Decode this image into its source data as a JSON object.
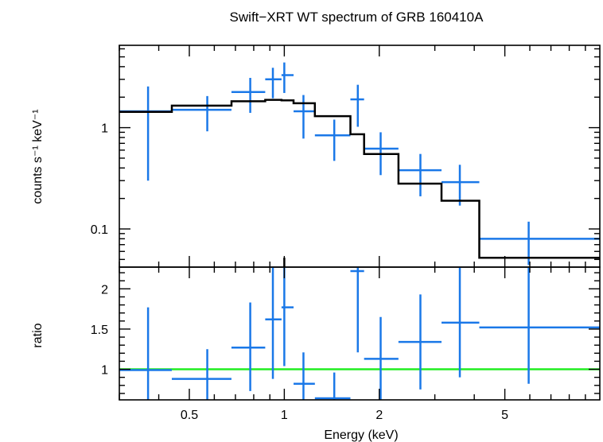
{
  "chart_data": {
    "title": "Swift−XRT WT spectrum of GRB 160410A",
    "xlabel": "Energy (keV)",
    "x_scale": "log",
    "xlim": [
      0.3,
      10
    ],
    "x_ticks": [
      0.5,
      1,
      2,
      5
    ],
    "x_tick_labels": [
      "0.5",
      "1",
      "2",
      "5"
    ],
    "colors": {
      "data": "#1a78e8",
      "model": "#000000",
      "unity": "#22ee22",
      "frame": "#000000"
    },
    "panels": [
      {
        "id": "spectrum",
        "type": "scatter",
        "ylabel": "counts s⁻¹ keV⁻¹",
        "y_scale": "log",
        "ylim": [
          0.042,
          6.5
        ],
        "y_ticks": [
          0.1,
          1
        ],
        "y_tick_labels": [
          "0.1",
          "1"
        ],
        "series": [
          {
            "kind": "errorbars",
            "points": [
              {
                "x": 0.37,
                "xlo": 0.3,
                "xhi": 0.44,
                "y": 1.45,
                "ylo": 0.3,
                "yhi": 2.55
              },
              {
                "x": 0.57,
                "xlo": 0.44,
                "xhi": 0.68,
                "y": 1.5,
                "ylo": 0.92,
                "yhi": 2.05
              },
              {
                "x": 0.78,
                "xlo": 0.68,
                "xhi": 0.87,
                "y": 2.25,
                "ylo": 1.4,
                "yhi": 3.1
              },
              {
                "x": 0.92,
                "xlo": 0.87,
                "xhi": 0.98,
                "y": 3.0,
                "ylo": 1.95,
                "yhi": 3.9
              },
              {
                "x": 1.0,
                "xlo": 0.98,
                "xhi": 1.07,
                "y": 3.3,
                "ylo": 2.2,
                "yhi": 4.4
              },
              {
                "x": 1.15,
                "xlo": 1.07,
                "xhi": 1.25,
                "y": 1.45,
                "ylo": 0.78,
                "yhi": 2.1
              },
              {
                "x": 1.44,
                "xlo": 1.25,
                "xhi": 1.62,
                "y": 0.84,
                "ylo": 0.47,
                "yhi": 1.2
              },
              {
                "x": 1.71,
                "xlo": 1.62,
                "xhi": 1.79,
                "y": 1.9,
                "ylo": 1.02,
                "yhi": 2.65
              },
              {
                "x": 2.02,
                "xlo": 1.79,
                "xhi": 2.3,
                "y": 0.62,
                "ylo": 0.34,
                "yhi": 0.9
              },
              {
                "x": 2.7,
                "xlo": 2.3,
                "xhi": 3.15,
                "y": 0.38,
                "ylo": 0.21,
                "yhi": 0.55
              },
              {
                "x": 3.6,
                "xlo": 3.15,
                "xhi": 4.15,
                "y": 0.29,
                "ylo": 0.17,
                "yhi": 0.43
              },
              {
                "x": 5.95,
                "xlo": 4.15,
                "xhi": 10.0,
                "y": 0.08,
                "ylo": 0.044,
                "yhi": 0.118
              }
            ]
          },
          {
            "kind": "step-model",
            "edges": [
              0.3,
              0.44,
              0.68,
              0.87,
              0.98,
              1.07,
              1.25,
              1.62,
              1.79,
              2.3,
              3.15,
              4.15,
              10.0
            ],
            "values": [
              1.43,
              1.65,
              1.82,
              1.88,
              1.86,
              1.74,
              1.3,
              0.86,
              0.55,
              0.28,
              0.19,
              0.052
            ]
          }
        ],
        "extra_marks": [
          {
            "x": 1.0,
            "ylo": 0.042,
            "yhi": 0.052
          }
        ]
      },
      {
        "id": "ratio",
        "type": "scatter",
        "ylabel": "ratio",
        "y_scale": "linear",
        "ylim": [
          0.62,
          2.27
        ],
        "y_ticks": [
          1,
          1.5,
          2
        ],
        "y_tick_labels": [
          "1",
          "1.5",
          "2"
        ],
        "unity_line": 1.0,
        "points": [
          {
            "x": 0.37,
            "xlo": 0.3,
            "xhi": 0.44,
            "y": 0.99,
            "ylo": 0.62,
            "yhi": 1.77
          },
          {
            "x": 0.57,
            "xlo": 0.44,
            "xhi": 0.68,
            "y": 0.88,
            "ylo": 0.62,
            "yhi": 1.25
          },
          {
            "x": 0.78,
            "xlo": 0.68,
            "xhi": 0.87,
            "y": 1.27,
            "ylo": 0.73,
            "yhi": 1.83
          },
          {
            "x": 0.92,
            "xlo": 0.87,
            "xhi": 0.98,
            "y": 1.62,
            "ylo": 0.88,
            "yhi": 2.27
          },
          {
            "x": 1.0,
            "xlo": 0.98,
            "xhi": 1.07,
            "y": 1.77,
            "ylo": 1.04,
            "yhi": 2.27
          },
          {
            "x": 1.15,
            "xlo": 1.07,
            "xhi": 1.25,
            "y": 0.82,
            "ylo": 0.62,
            "yhi": 1.21
          },
          {
            "x": 1.44,
            "xlo": 1.25,
            "xhi": 1.62,
            "y": 0.64,
            "ylo": 0.62,
            "yhi": 0.96
          },
          {
            "x": 1.71,
            "xlo": 1.62,
            "xhi": 1.79,
            "y": 2.22,
            "ylo": 1.21,
            "yhi": 2.27
          },
          {
            "x": 2.02,
            "xlo": 1.79,
            "xhi": 2.3,
            "y": 1.13,
            "ylo": 0.62,
            "yhi": 1.65
          },
          {
            "x": 2.7,
            "xlo": 2.3,
            "xhi": 3.15,
            "y": 1.34,
            "ylo": 0.75,
            "yhi": 1.93
          },
          {
            "x": 3.6,
            "xlo": 3.15,
            "xhi": 4.15,
            "y": 1.58,
            "ylo": 0.9,
            "yhi": 2.27
          },
          {
            "x": 5.95,
            "xlo": 4.15,
            "xhi": 10.0,
            "y": 1.52,
            "ylo": 0.82,
            "yhi": 2.27
          }
        ]
      }
    ]
  }
}
